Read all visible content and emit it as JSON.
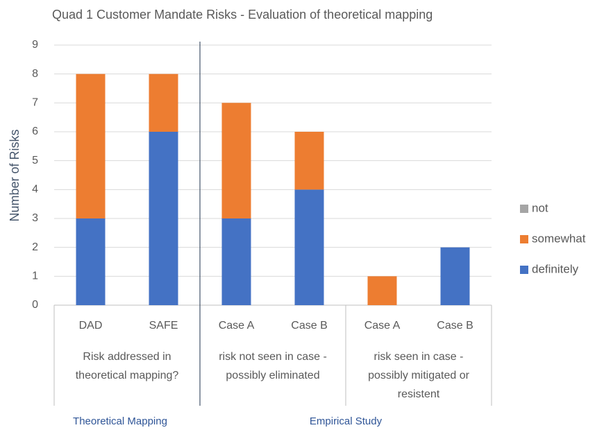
{
  "chart_data": {
    "type": "stacked_bar",
    "title": "Quad 1 Customer Mandate Risks - Evaluation of theoretical mapping",
    "y_label": "Number of Risks",
    "ylim": [
      0,
      9
    ],
    "yticks": [
      0,
      1,
      2,
      3,
      4,
      5,
      6,
      7,
      8,
      9
    ],
    "grid": true,
    "legend": "right",
    "super_groups": [
      {
        "name": "Theoretical Mapping",
        "groups": [
          {
            "lines": [
              "Risk addressed in",
              "theoretical mapping?"
            ],
            "categories": [
              "DAD",
              "SAFE"
            ]
          }
        ]
      },
      {
        "name": "Empirical Study",
        "groups": [
          {
            "lines": [
              "risk not seen in case -",
              "possibly eliminated"
            ],
            "categories": [
              "Case A",
              "Case B"
            ]
          },
          {
            "lines": [
              "risk seen in case -",
              "possibly mitigated or",
              "resistent"
            ],
            "categories": [
              "Case A",
              "Case B"
            ]
          }
        ]
      }
    ],
    "series": [
      {
        "name": "definitely",
        "color": "#4472c4",
        "values": [
          3,
          6,
          3,
          4,
          0,
          2
        ]
      },
      {
        "name": "somewhat",
        "color": "#ed7d31",
        "values": [
          5,
          2,
          4,
          2,
          1,
          0
        ]
      },
      {
        "name": "not",
        "color": "#a5a5a5",
        "values": [
          0,
          0,
          0,
          0,
          0,
          0
        ]
      }
    ]
  }
}
